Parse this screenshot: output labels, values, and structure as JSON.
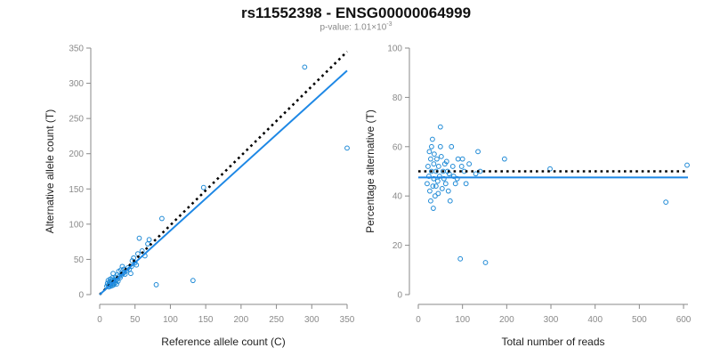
{
  "title": "rs11552398 - ENSG00000064999",
  "subtitle_prefix": "p-value: 1.01×10",
  "subtitle_exp": "-3",
  "colors": {
    "points": "#1f8ad6",
    "fit": "#1e88e5",
    "reference": "#000000",
    "axis": "#8a8a8a"
  },
  "chart_data": [
    {
      "type": "scatter",
      "title": "",
      "xlabel": "Reference allele count (C)",
      "ylabel": "Alternative allele count (T)",
      "xlim": [
        0,
        350
      ],
      "ylim": [
        0,
        350
      ],
      "xticks": [
        "0",
        "50",
        "100",
        "150",
        "200",
        "250",
        "300",
        "350"
      ],
      "yticks": [
        "0",
        "50",
        "100",
        "150",
        "200",
        "250",
        "300",
        "350"
      ],
      "points": [
        [
          10,
          12
        ],
        [
          11,
          16
        ],
        [
          12,
          13
        ],
        [
          12,
          20
        ],
        [
          13,
          11
        ],
        [
          14,
          15
        ],
        [
          14,
          18
        ],
        [
          15,
          14
        ],
        [
          15,
          22
        ],
        [
          16,
          12
        ],
        [
          16,
          17
        ],
        [
          17,
          15
        ],
        [
          17,
          20
        ],
        [
          18,
          13
        ],
        [
          18,
          24
        ],
        [
          19,
          16
        ],
        [
          19,
          30
        ],
        [
          20,
          18
        ],
        [
          20,
          14
        ],
        [
          21,
          21
        ],
        [
          22,
          17
        ],
        [
          22,
          25
        ],
        [
          23,
          20
        ],
        [
          24,
          15
        ],
        [
          25,
          28
        ],
        [
          25,
          22
        ],
        [
          26,
          19
        ],
        [
          27,
          33
        ],
        [
          28,
          26
        ],
        [
          29,
          24
        ],
        [
          30,
          35
        ],
        [
          31,
          28
        ],
        [
          32,
          40
        ],
        [
          33,
          30
        ],
        [
          34,
          36
        ],
        [
          35,
          32
        ],
        [
          36,
          29
        ],
        [
          38,
          34
        ],
        [
          40,
          38
        ],
        [
          42,
          36
        ],
        [
          44,
          30
        ],
        [
          45,
          40
        ],
        [
          46,
          48
        ],
        [
          48,
          52
        ],
        [
          50,
          45
        ],
        [
          52,
          42
        ],
        [
          54,
          58
        ],
        [
          56,
          80
        ],
        [
          60,
          62
        ],
        [
          64,
          55
        ],
        [
          68,
          72
        ],
        [
          70,
          78
        ],
        [
          80,
          14
        ],
        [
          88,
          108
        ],
        [
          132,
          20
        ],
        [
          147,
          152
        ],
        [
          290,
          323
        ],
        [
          350,
          208
        ]
      ],
      "lines": [
        {
          "name": "",
          "style": "dotted",
          "x": [
            0,
            350
          ],
          "y": [
            0,
            345
          ]
        },
        {
          "name": "",
          "style": "solid",
          "x": [
            0,
            350
          ],
          "y": [
            0,
            318
          ]
        }
      ]
    },
    {
      "type": "scatter",
      "title": "",
      "xlabel": "Total number of reads",
      "ylabel": "Percentage alternative (T)",
      "xlim": [
        0,
        610
      ],
      "ylim": [
        0,
        100
      ],
      "xticks": [
        "0",
        "100",
        "200",
        "300",
        "400",
        "500",
        "600"
      ],
      "yticks": [
        "0",
        "20",
        "40",
        "60",
        "80",
        "100"
      ],
      "points": [
        [
          20,
          45
        ],
        [
          22,
          52
        ],
        [
          24,
          48
        ],
        [
          25,
          58
        ],
        [
          26,
          42
        ],
        [
          28,
          55
        ],
        [
          28,
          38
        ],
        [
          30,
          60
        ],
        [
          30,
          50
        ],
        [
          32,
          63
        ],
        [
          33,
          44
        ],
        [
          34,
          35
        ],
        [
          35,
          47
        ],
        [
          35,
          53
        ],
        [
          36,
          57
        ],
        [
          38,
          40
        ],
        [
          40,
          50
        ],
        [
          40,
          44
        ],
        [
          42,
          55
        ],
        [
          44,
          46
        ],
        [
          45,
          41
        ],
        [
          46,
          52
        ],
        [
          48,
          48
        ],
        [
          50,
          68
        ],
        [
          50,
          60
        ],
        [
          52,
          56
        ],
        [
          54,
          43
        ],
        [
          56,
          50
        ],
        [
          58,
          47
        ],
        [
          60,
          53
        ],
        [
          62,
          45
        ],
        [
          64,
          54
        ],
        [
          66,
          50
        ],
        [
          68,
          42
        ],
        [
          70,
          49
        ],
        [
          72,
          38
        ],
        [
          75,
          60
        ],
        [
          78,
          52
        ],
        [
          80,
          48
        ],
        [
          84,
          45
        ],
        [
          88,
          47
        ],
        [
          90,
          55
        ],
        [
          95,
          14.5
        ],
        [
          98,
          52
        ],
        [
          100,
          55
        ],
        [
          104,
          50
        ],
        [
          108,
          45
        ],
        [
          115,
          53
        ],
        [
          130,
          49
        ],
        [
          135,
          58
        ],
        [
          140,
          50
        ],
        [
          152,
          13
        ],
        [
          195,
          55
        ],
        [
          298,
          51
        ],
        [
          560,
          37.5
        ],
        [
          608,
          52.5
        ]
      ],
      "lines": [
        {
          "name": "",
          "style": "dotted",
          "x": [
            0,
            610
          ],
          "y": [
            50,
            50
          ]
        },
        {
          "name": "",
          "style": "solid",
          "x": [
            0,
            610
          ],
          "y": [
            47.5,
            47.5
          ]
        }
      ]
    }
  ]
}
